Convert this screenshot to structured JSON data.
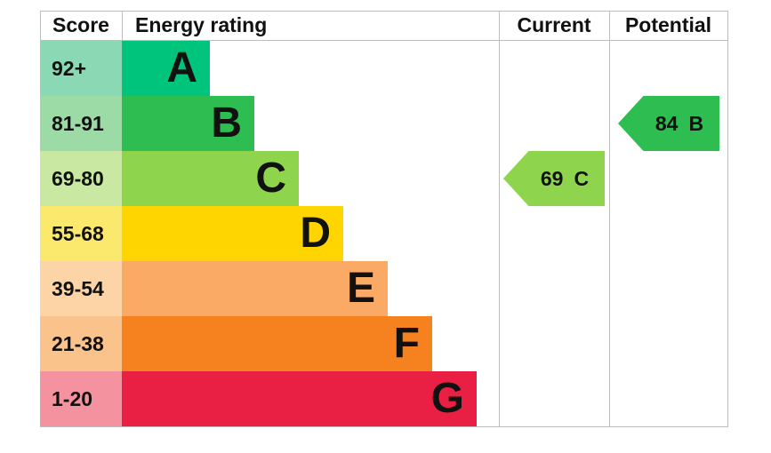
{
  "header": {
    "score": "Score",
    "energy_rating": "Energy rating",
    "current": "Current",
    "potential": "Potential"
  },
  "chart_data": {
    "type": "epc-energy-rating-chart",
    "title": "Energy rating",
    "columns": [
      "Score",
      "Energy rating",
      "Current",
      "Potential"
    ],
    "bands": [
      {
        "letter": "A",
        "score_range": "92+",
        "bar_color": "#00c47c",
        "score_cell_color": "#8bd8b4"
      },
      {
        "letter": "B",
        "score_range": "81-91",
        "bar_color": "#2ebd51",
        "score_cell_color": "#9cdba6"
      },
      {
        "letter": "C",
        "score_range": "69-80",
        "bar_color": "#8ed54d",
        "score_cell_color": "#c9e9a2"
      },
      {
        "letter": "D",
        "score_range": "55-68",
        "bar_color": "#ffd500",
        "score_cell_color": "#fbe96e"
      },
      {
        "letter": "E",
        "score_range": "39-54",
        "bar_color": "#fbaa66",
        "score_cell_color": "#fdd4a6"
      },
      {
        "letter": "F",
        "score_range": "21-38",
        "bar_color": "#f6821f",
        "score_cell_color": "#fac38c"
      },
      {
        "letter": "G",
        "score_range": "1-20",
        "bar_color": "#ea1f44",
        "score_cell_color": "#f5929f"
      }
    ],
    "current": {
      "value": "69",
      "letter": "C",
      "band_index": 2,
      "arrow_color": "#8ed54d"
    },
    "potential": {
      "value": "84",
      "letter": "B",
      "band_index": 1,
      "arrow_color": "#2ebd51"
    }
  }
}
